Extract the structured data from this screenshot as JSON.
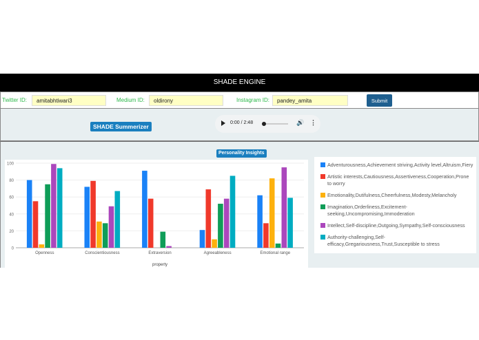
{
  "header": {
    "title": "SHADE ENGINE"
  },
  "form": {
    "twitter_label": "Twitter ID:",
    "twitter_value": "amitabhtiwari3",
    "medium_label": "Medium ID:",
    "medium_value": "oldirony",
    "instagram_label": "Instagram ID:",
    "instagram_value": "pandey_amita",
    "submit_label": "Submit"
  },
  "summarizer": {
    "label": "SHADE Summerizer",
    "audio_time": "0:00 / 2:48",
    "audio_progress": 0
  },
  "insights": {
    "label": "Personality Insights"
  },
  "colors": {
    "accent": "#1a7fbf",
    "header_bg": "#000000",
    "label_green": "#2db84b"
  },
  "chart_data": {
    "type": "bar",
    "categories": [
      "Openness",
      "Conscientiousness",
      "Extraversion",
      "Agreeableness",
      "Emotional range"
    ],
    "xlabel": "property",
    "ylim": [
      0,
      100
    ],
    "yticks": [
      "0",
      "20",
      "40",
      "60",
      "80",
      "100"
    ],
    "grid": true,
    "legend_position": "right",
    "series": [
      {
        "name": "Adventurousness,Achievement striving,Activity level,Altruism,Fiery",
        "color": "#1a82f7",
        "values": [
          80,
          72,
          91,
          21,
          62
        ]
      },
      {
        "name": "Artistic interests,Cautiousness,Assertiveness,Cooperation,Prone to worry",
        "color": "#f0392b",
        "values": [
          55,
          79,
          58,
          69,
          29
        ]
      },
      {
        "name": "Emotionality,Dutifulness,Cheerfulness,Modesty,Melancholy",
        "color": "#fdb10d",
        "values": [
          4,
          31,
          0,
          10,
          82
        ]
      },
      {
        "name": "Imagination,Orderliness,Excitement-seeking,Uncompromising,Immoderation",
        "color": "#0f9d58",
        "values": [
          75,
          29,
          19,
          52,
          5
        ]
      },
      {
        "name": "Intellect,Self-discipline,Outgoing,Sympathy,Self-consciousness",
        "color": "#ab47bc",
        "values": [
          99,
          49,
          2,
          58,
          95
        ]
      },
      {
        "name": "Authority-challenging,Self-efficacy,Gregariousness,Trust,Susceptible to stress",
        "color": "#00acc1",
        "values": [
          94,
          67,
          0,
          85,
          59
        ]
      }
    ]
  }
}
